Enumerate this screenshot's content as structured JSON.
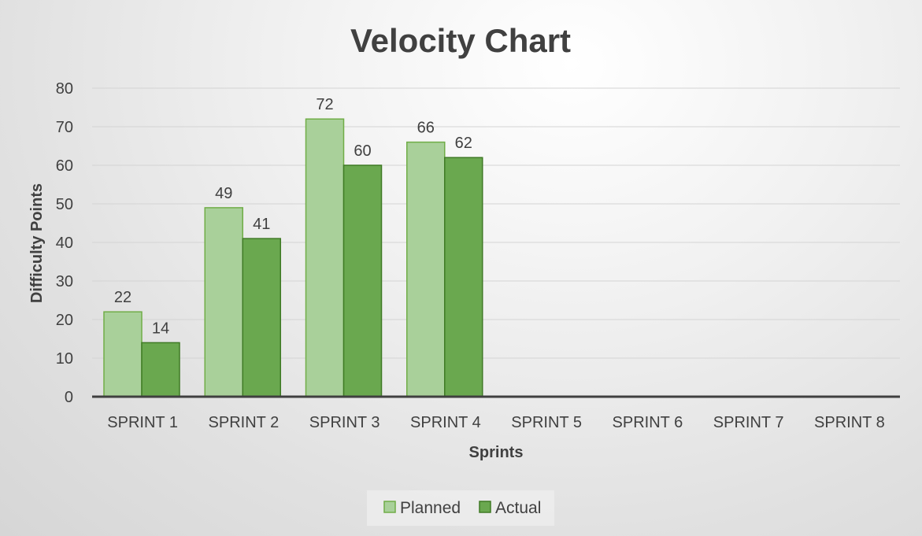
{
  "chart_data": {
    "type": "bar",
    "title": "Velocity Chart",
    "xlabel": "Sprints",
    "ylabel": "Difficulty Points",
    "categories": [
      "SPRINT 1",
      "SPRINT 2",
      "SPRINT 3",
      "SPRINT 4",
      "SPRINT 5",
      "SPRINT 6",
      "SPRINT 7",
      "SPRINT 8"
    ],
    "series": [
      {
        "name": "Planned",
        "values": [
          22,
          49,
          72,
          66,
          null,
          null,
          null,
          null
        ],
        "color": "#a9d09a",
        "border": "#70ad47"
      },
      {
        "name": "Actual",
        "values": [
          14,
          41,
          60,
          62,
          null,
          null,
          null,
          null
        ],
        "color": "#6aa84f",
        "border": "#3f7a25"
      }
    ],
    "ylim": [
      0,
      80
    ],
    "yticks": [
      0,
      10,
      20,
      30,
      40,
      50,
      60,
      70,
      80
    ],
    "grid": true,
    "legend": "bottom",
    "data_labels": true
  }
}
